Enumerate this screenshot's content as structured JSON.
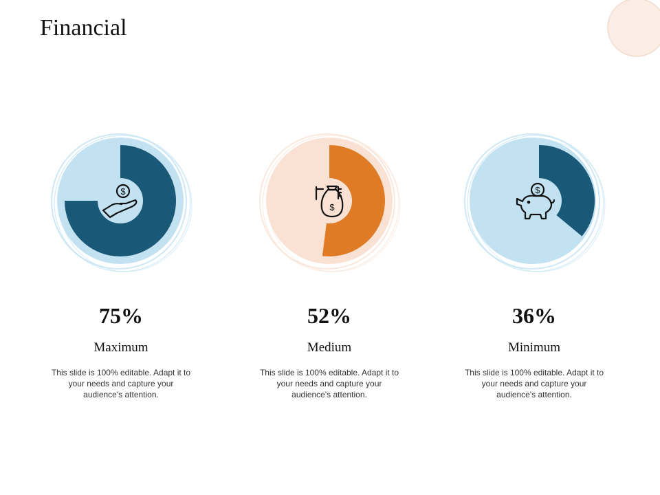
{
  "page": {
    "title": "Financial"
  },
  "colors": {
    "blue_dark": "#195877",
    "blue_light": "#c2e2f2",
    "orange": "#e07b25",
    "peach": "#f9e2d4",
    "corner": "#fbece4"
  },
  "chart_data": {
    "type": "pie",
    "title": "Financial",
    "series": [
      {
        "name": "Maximum",
        "value": 75,
        "display": "75%",
        "icon": "hand-coin-icon",
        "ring_color": "#195877",
        "bg_color": "#c2e2f2",
        "description": "This slide is 100% editable. Adapt it to your needs and capture your audience's attention."
      },
      {
        "name": "Medium",
        "value": 52,
        "display": "52%",
        "icon": "money-bag-icon",
        "ring_color": "#e07b25",
        "bg_color": "#f9e2d4",
        "description": "This slide is 100% editable. Adapt it to your needs and capture your audience's attention."
      },
      {
        "name": "Minimum",
        "value": 36,
        "display": "36%",
        "icon": "piggy-bank-icon",
        "ring_color": "#195877",
        "bg_color": "#c2e2f2",
        "description": "This slide is 100% editable. Adapt it to your needs and capture your audience's attention."
      }
    ]
  }
}
